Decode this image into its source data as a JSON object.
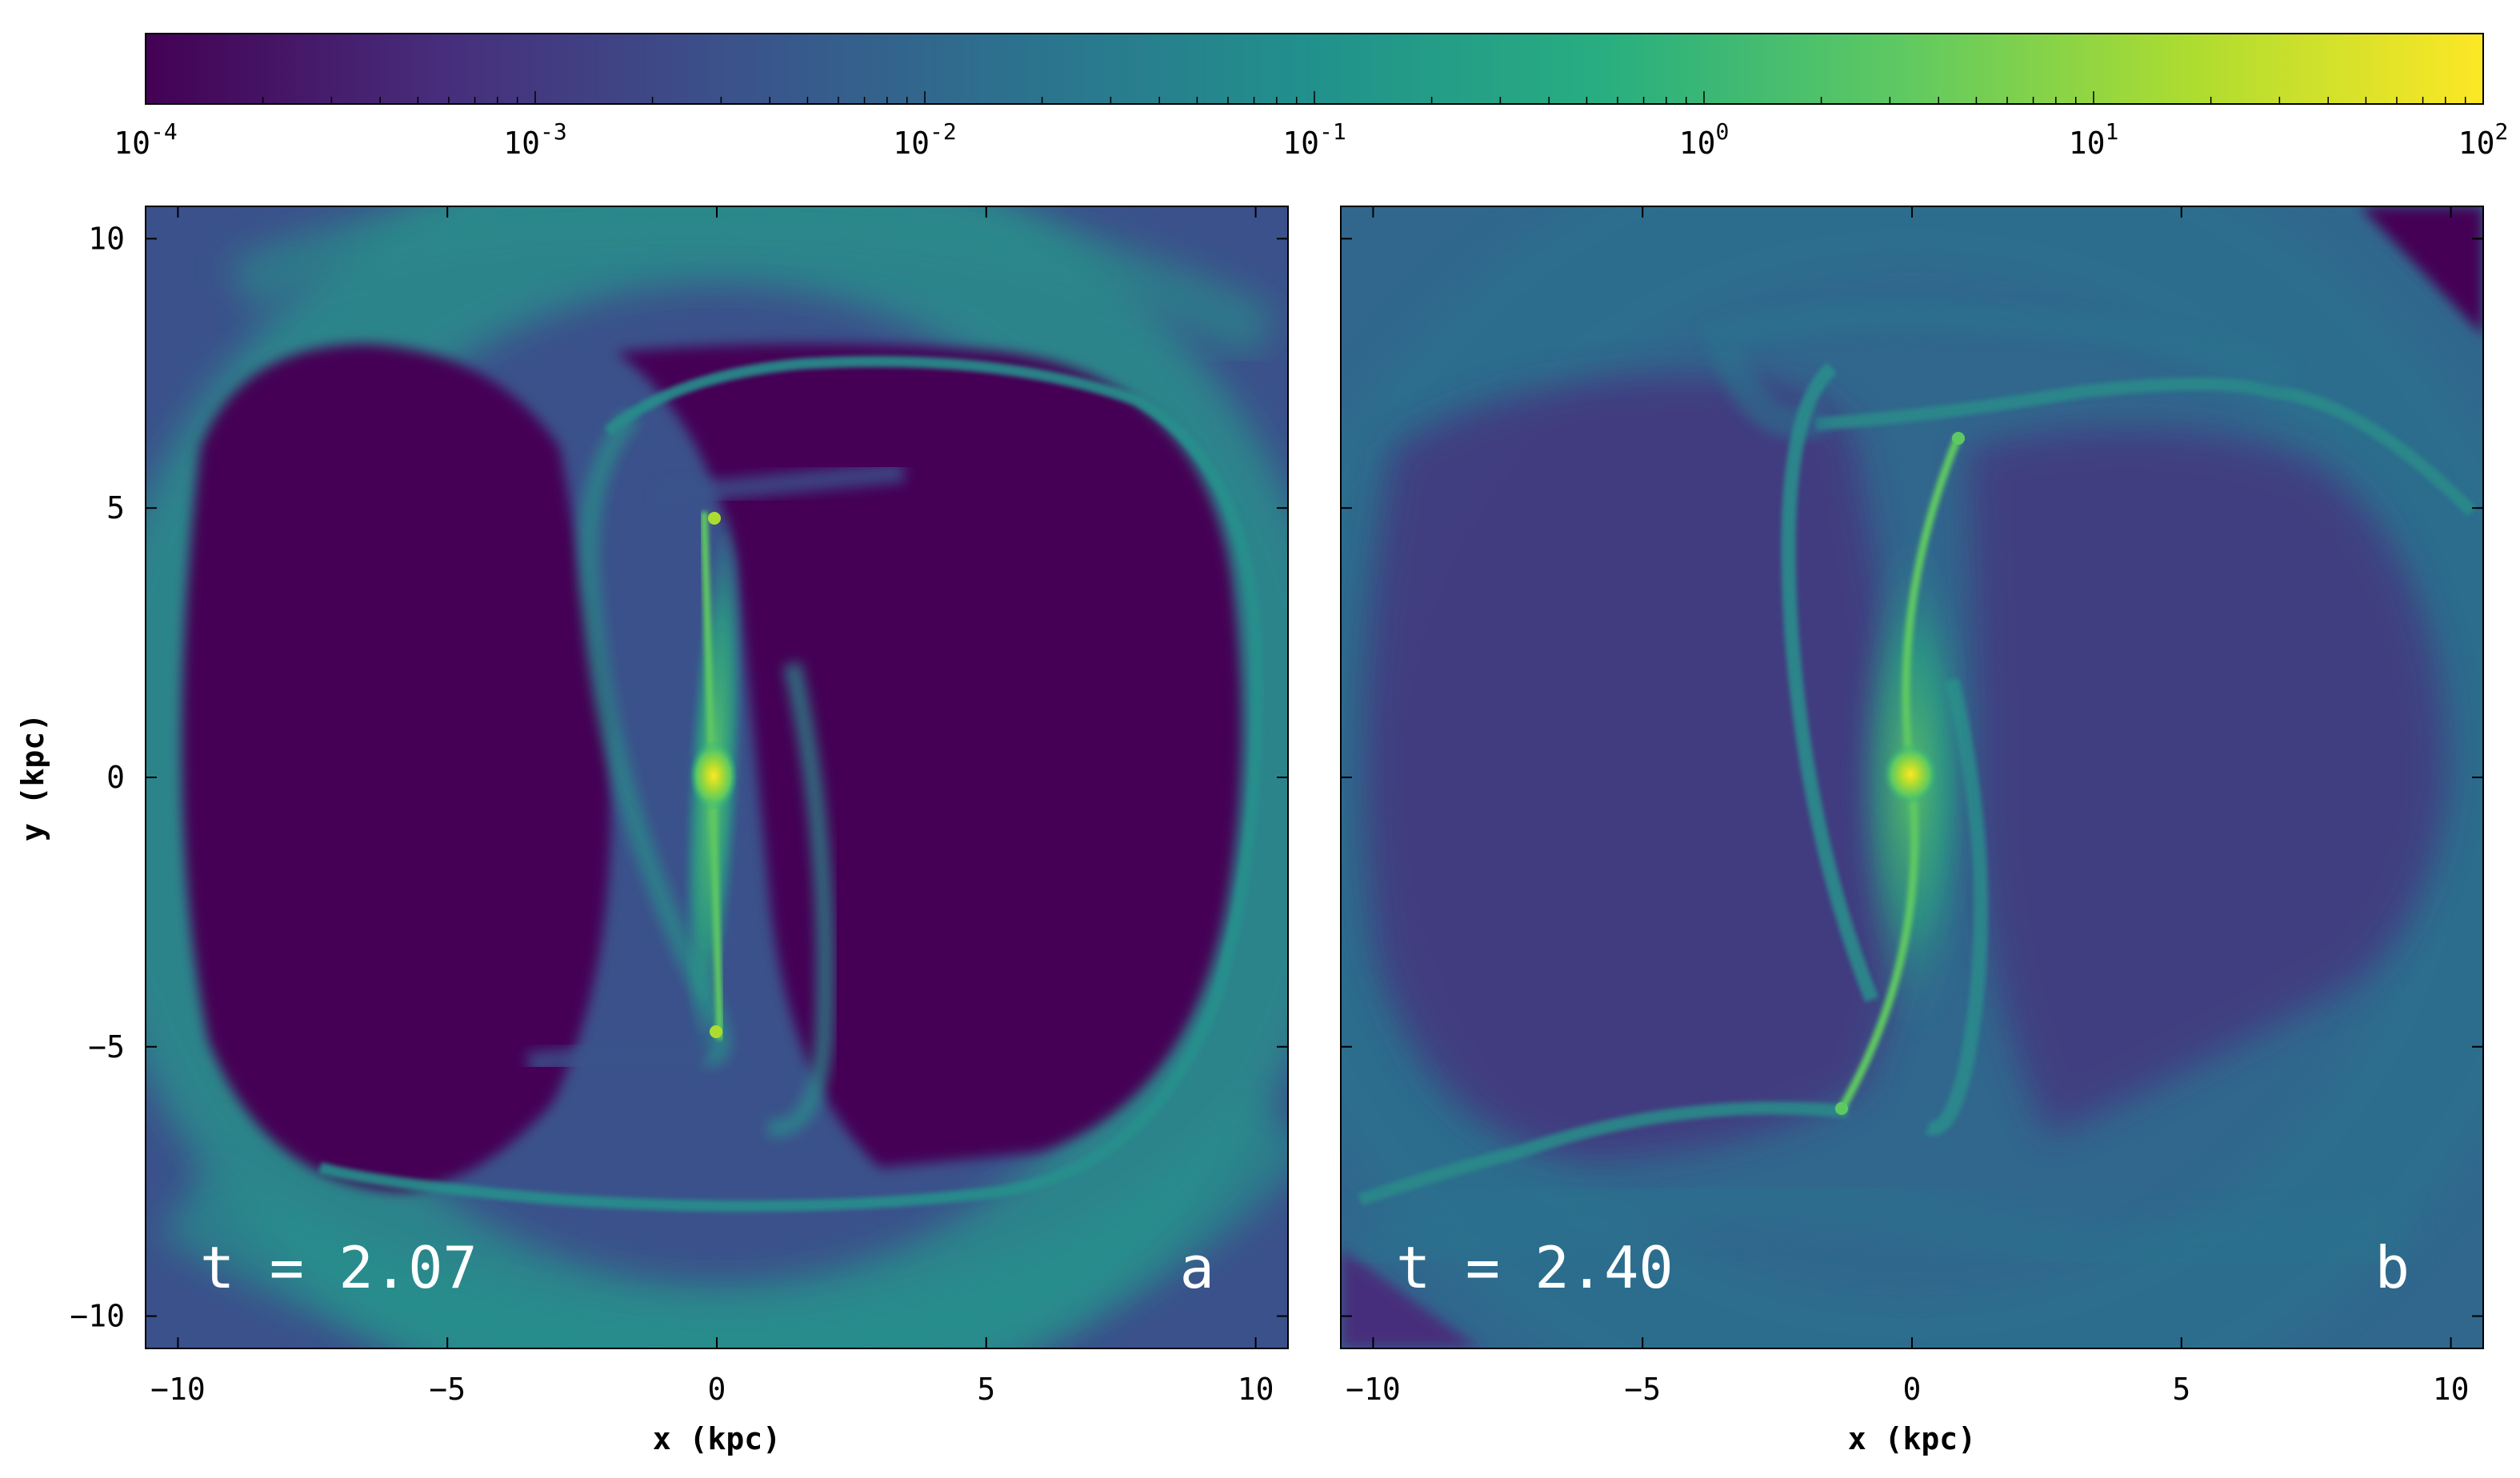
{
  "chart_data": {
    "type": "heatmap",
    "colormap": "viridis",
    "colorbar": {
      "scale": "log",
      "range": [
        0.0001,
        100
      ],
      "placement": "top",
      "tick_values": [
        0.0001,
        0.001,
        0.01,
        0.1,
        1,
        10,
        100
      ],
      "tick_labels": [
        {
          "base": "10",
          "exp": "-4"
        },
        {
          "base": "10",
          "exp": "-3"
        },
        {
          "base": "10",
          "exp": "-2"
        },
        {
          "base": "10",
          "exp": "-1"
        },
        {
          "base": "10",
          "exp": "0"
        },
        {
          "base": "10",
          "exp": "1"
        },
        {
          "base": "10",
          "exp": "2"
        }
      ]
    },
    "xlabel": "x (kpc)",
    "ylabel": "y (kpc)",
    "xlim": [
      -10.6,
      10.6
    ],
    "ylim": [
      -10.6,
      10.6
    ],
    "x_ticks": [
      -10,
      -5,
      0,
      5,
      10
    ],
    "y_ticks": [
      -10,
      -5,
      0,
      5,
      10
    ],
    "panels": [
      {
        "time_label": "t = 2.07",
        "panel_letter": "a",
        "x_tick_labels": [
          "−10",
          "−5",
          "0",
          "5",
          "10"
        ],
        "y_tick_labels": [
          "−10",
          "−5",
          "0",
          "5",
          "10"
        ],
        "background_level": 0.003
      },
      {
        "time_label": "t = 2.40",
        "panel_letter": "b",
        "x_tick_labels": [
          "−10",
          "−5",
          "0",
          "5",
          "10"
        ],
        "background_level": 0.01
      }
    ]
  }
}
